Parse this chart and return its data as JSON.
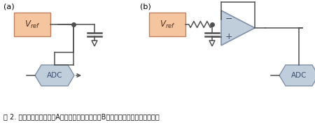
{
  "fig_width": 4.5,
  "fig_height": 1.79,
  "dpi": 100,
  "caption": "图 2. 电压基准通常需要（A）一只旁路电容，或（B）一只带缓冲放大器的电容。",
  "caption_fontsize": 7.0,
  "label_a": "(a)",
  "label_b": "(b)",
  "vref_fill": "#f5c5a0",
  "vref_edge": "#c08060",
  "adc_fill": "#c0cedc",
  "adc_edge": "#8090a8",
  "opamp_fill": "#c0cedc",
  "opamp_edge": "#8090a8",
  "wire_color": "#505050",
  "text_dark": "#503020",
  "adc_text": "#405070",
  "bg_color": "#ffffff",
  "lw": 1.1,
  "cap_lw": 1.8
}
